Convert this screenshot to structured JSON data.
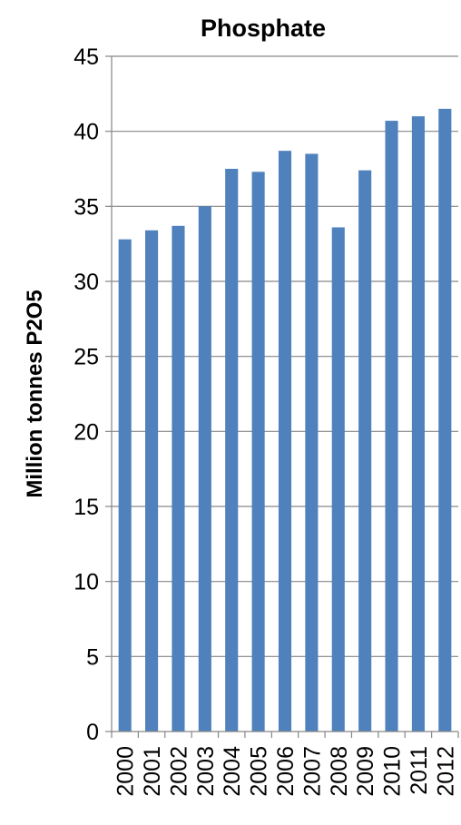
{
  "chart_data": {
    "type": "bar",
    "title": "Phosphate",
    "xlabel": "",
    "ylabel": "Million tonnes P2O5",
    "categories": [
      "2000",
      "2001",
      "2002",
      "2003",
      "2004",
      "2005",
      "2006",
      "2007",
      "2008",
      "2009",
      "2010",
      "2011",
      "2012"
    ],
    "values": [
      32.8,
      33.4,
      33.7,
      35.0,
      37.5,
      37.3,
      38.7,
      38.5,
      33.6,
      37.4,
      40.7,
      41.0,
      41.5
    ],
    "ylim": [
      0,
      45
    ],
    "yticks": [
      "0",
      "5",
      "10",
      "15",
      "20",
      "25",
      "30",
      "35",
      "40",
      "45"
    ],
    "grid": true,
    "legend": "none",
    "colors": {
      "bar": "#4f81bd",
      "grid": "#868686",
      "axis": "#868686"
    }
  }
}
